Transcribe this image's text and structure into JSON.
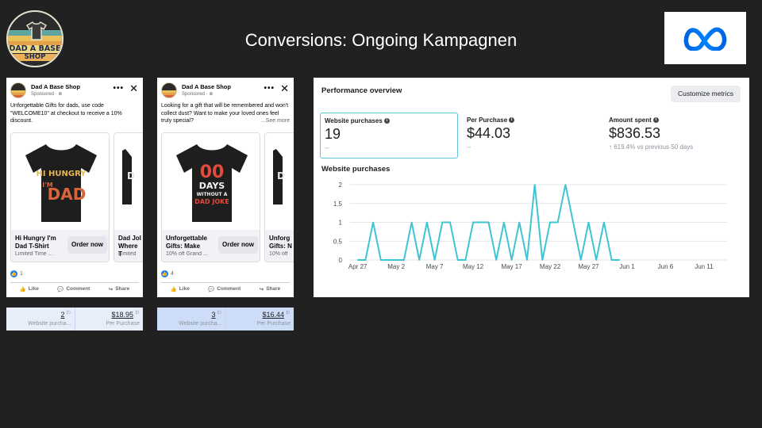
{
  "header": {
    "title": "Conversions: Ongoing Kampagnen",
    "brand_logo_text": [
      "DAD A BASE",
      "SHOP"
    ],
    "meta_logo": "meta-infinity-icon"
  },
  "ads": [
    {
      "page_name": "Dad A Base Shop",
      "sponsored": "Sponsored · ",
      "body": "Unforgettable Gifts for dads, use code \"WELCOME10\" at checkout to receive a 10% discount.",
      "see_more": "",
      "card": {
        "title": "Hi Hungry I'm Dad T-Shirt",
        "subtitle": "Limited Time ...",
        "cta": "Order now",
        "design_lines": [
          "HI HUNGRY",
          "I'M",
          "DAD"
        ]
      },
      "peek_card": {
        "title": "Dad Jol Where T",
        "subtitle": "Limited"
      },
      "reactions": "1",
      "actions": {
        "like": "Like",
        "comment": "Comment",
        "share": "Share"
      },
      "stats": {
        "purchases": "2",
        "purchases_label": "Website purcha...",
        "per_purchase": "$18.95",
        "per_purchase_label": "Per Purchase"
      }
    },
    {
      "page_name": "Dad A Base Shop",
      "sponsored": "Sponsored · ",
      "body": "Looking for a gift that will be remembered and won't collect dust? Want to make your loved ones feel truly special?",
      "see_more": "...See more",
      "card": {
        "title": "Unforgettable Gifts: Make",
        "subtitle": "10% off Grand ...",
        "cta": "Order now",
        "design_lines": [
          "00",
          "DAYS",
          "WITHOUT A",
          "DAD JOKE"
        ]
      },
      "peek_card": {
        "title": "Unforg Gifts: N",
        "subtitle": "10% off"
      },
      "reactions": "4",
      "actions": {
        "like": "Like",
        "comment": "Comment",
        "share": "Share"
      },
      "stats": {
        "purchases": "3",
        "purchases_label": "Website purcha...",
        "per_purchase": "$16.44",
        "per_purchase_label": "Per Purchase"
      }
    }
  ],
  "performance": {
    "title": "Performance overview",
    "customize_button": "Customize metrics",
    "metrics": [
      {
        "label": "Website purchases",
        "value": "19",
        "sub": "--",
        "selected": true
      },
      {
        "label": "Per Purchase",
        "value": "$44.03",
        "sub": "--",
        "selected": false
      },
      {
        "label": "Amount spent",
        "value": "$836.53",
        "sub": "↑ 619.4% vs previous 50 days",
        "selected": false
      }
    ],
    "chart_title": "Website purchases"
  },
  "chart_data": {
    "type": "line",
    "title": "Website purchases",
    "x_tick_labels": [
      "Apr 27",
      "May 2",
      "May 7",
      "May 12",
      "May 17",
      "May 22",
      "May 27",
      "Jun 1",
      "Jun 6",
      "Jun 11"
    ],
    "y_ticks": [
      0,
      0.5,
      1,
      1.5,
      2
    ],
    "ylim": [
      0,
      2
    ],
    "grid": true,
    "x": [
      "Apr 27",
      "Apr 28",
      "Apr 29",
      "Apr 30",
      "May 1",
      "May 2",
      "May 3",
      "May 4",
      "May 5",
      "May 6",
      "May 7",
      "May 8",
      "May 9",
      "May 10",
      "May 11",
      "May 12",
      "May 13",
      "May 14",
      "May 15",
      "May 16",
      "May 17",
      "May 18",
      "May 19",
      "May 20",
      "May 21",
      "May 22",
      "May 23",
      "May 24",
      "May 25",
      "May 26",
      "May 27",
      "May 28",
      "May 29",
      "May 30",
      "May 31"
    ],
    "series": [
      {
        "values": [
          0,
          0,
          1,
          0,
          0,
          0,
          0,
          1,
          0,
          1,
          0,
          1,
          1,
          0,
          0,
          1,
          1,
          1,
          0,
          1,
          0,
          1,
          0,
          2,
          0,
          1,
          1,
          2,
          1,
          0,
          1,
          0,
          1,
          0,
          0
        ],
        "color": "#3fc5d2"
      }
    ],
    "x_range": [
      "Apr 26",
      "Jun 14"
    ]
  }
}
